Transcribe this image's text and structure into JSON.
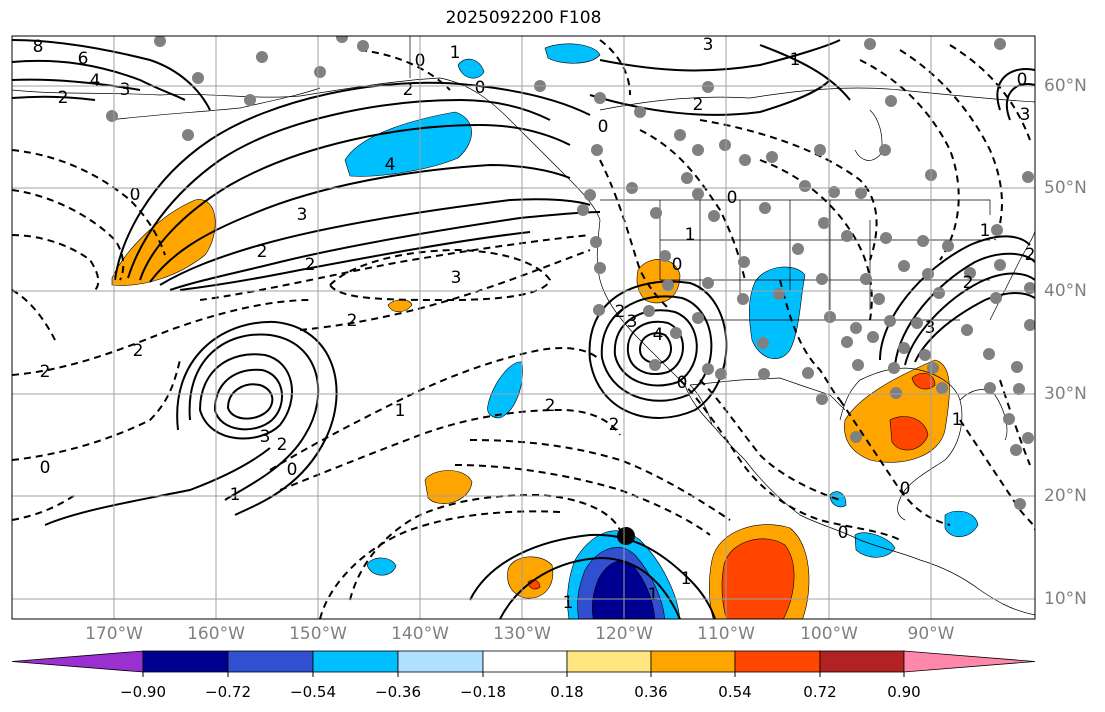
{
  "title": "2025092200 F108",
  "lat_labels": [
    "60°N",
    "50°N",
    "40°N",
    "30°N",
    "20°N",
    "10°N"
  ],
  "lon_labels": [
    "170°W",
    "160°W",
    "150°W",
    "140°W",
    "130°W",
    "120°W",
    "110°W",
    "100°W",
    "90°W"
  ],
  "colorbar": {
    "ticks": [
      "−0.90",
      "−0.72",
      "−0.54",
      "−0.36",
      "−0.18",
      "0.18",
      "0.36",
      "0.54",
      "0.72",
      "0.90"
    ],
    "colors": [
      "#9b30d0",
      "#000090",
      "#3050d0",
      "#00bfff",
      "#b0e0ff",
      "#ffffff",
      "#ffe680",
      "#ffa500",
      "#ff4500",
      "#b22222",
      "#ff88aa"
    ]
  },
  "contour_labels": {
    "l1": "8",
    "l2": "6",
    "l3": "4",
    "l4": "3",
    "l5": "2",
    "l6": "0",
    "l7": "1",
    "l8": "0",
    "l9": "3",
    "l10": "1",
    "l11": "2",
    "l12": "0",
    "l13": "4",
    "l14": "3",
    "l15": "2",
    "l16": "2",
    "l17": "3",
    "l18": "2",
    "l19": "2",
    "l20": "2",
    "l21": "0",
    "l22": "3",
    "l23": "2",
    "l24": "1",
    "l25": "0",
    "l26": "1",
    "l27": "0",
    "l28": "3",
    "l29": "4",
    "l30": "2",
    "l31": "0",
    "l32": "2",
    "l33": "2",
    "l34": "1",
    "l35": "0",
    "l36": "2",
    "l37": "0",
    "l38": "3",
    "l39": "0",
    "l40": "2",
    "l41": "1",
    "l42": "1",
    "l43": "0",
    "l44": "0",
    "l45": "1",
    "l46": "3",
    "l47": "2",
    "l48": "1",
    "l49": "1"
  }
}
